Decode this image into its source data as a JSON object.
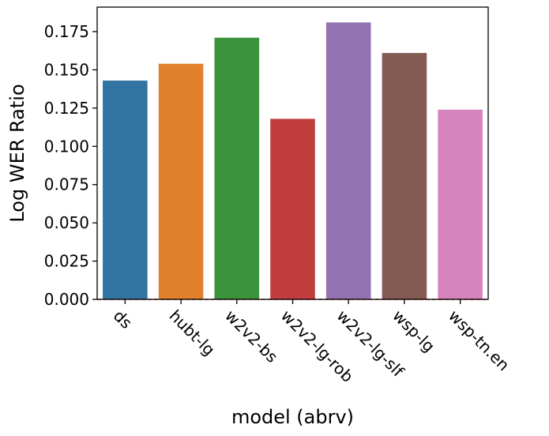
{
  "chart_data": {
    "type": "bar",
    "categories": [
      "ds",
      "hubt-lg",
      "w2v2-bs",
      "w2v2-lg-rob",
      "w2v2-lg-slf",
      "wsp-lg",
      "wsp-tn.en"
    ],
    "values": [
      0.143,
      0.154,
      0.171,
      0.118,
      0.181,
      0.161,
      0.124
    ],
    "colors": [
      "#3274a1",
      "#e1812c",
      "#3a923a",
      "#c03d3e",
      "#9372b2",
      "#845b53",
      "#d684bd"
    ],
    "title": "",
    "xlabel": "model (abrv)",
    "ylabel": "Log WER Ratio",
    "ylim": [
      0,
      0.191
    ],
    "yticks": [
      0.0,
      0.025,
      0.05,
      0.075,
      0.1,
      0.125,
      0.15,
      0.175
    ],
    "ytick_labels": [
      "0.000",
      "0.025",
      "0.050",
      "0.075",
      "0.100",
      "0.125",
      "0.150",
      "0.175"
    ],
    "grid": false,
    "reference_line": {
      "y": 0,
      "color": "#cc3333",
      "style": "dashed"
    }
  }
}
